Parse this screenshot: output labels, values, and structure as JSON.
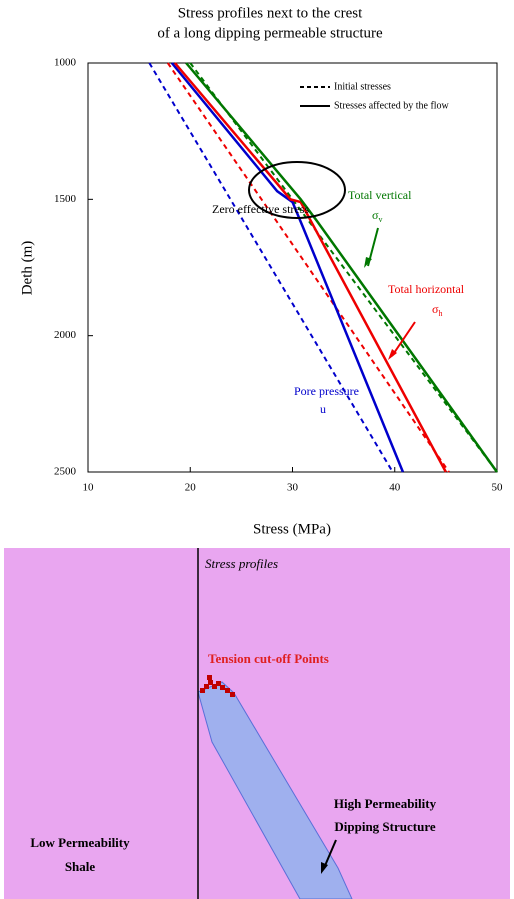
{
  "chart_data": {
    "type": "line",
    "title": [
      "Stress profiles next to the crest",
      "of a long dipping permeable structure"
    ],
    "x_label": "Stress (MPa)",
    "y_label": "Deth (m)",
    "xlim": [
      10,
      50
    ],
    "ylim": [
      1000,
      2500
    ],
    "y_inverted": true,
    "xticks": [
      10,
      20,
      30,
      40,
      50
    ],
    "yticks": [
      1000,
      1500,
      2000,
      2500
    ],
    "legend": [
      {
        "label": "Initial stresses",
        "style": "dashed"
      },
      {
        "label": "Stresses affected by the flow",
        "style": "solid"
      }
    ],
    "series": [
      {
        "color": "#0000cc",
        "style": "dashed",
        "x": [
          16,
          39.8
        ],
        "y": [
          1000,
          2500
        ]
      },
      {
        "color": "#ee0000",
        "style": "dashed",
        "x": [
          17.8,
          45.3
        ],
        "y": [
          1000,
          2500
        ]
      },
      {
        "color": "#007700",
        "style": "dashed",
        "x": [
          20,
          50
        ],
        "y": [
          1000,
          2500
        ]
      },
      {
        "color": "#0000cc",
        "style": "solid",
        "x": [
          18.2,
          28.5,
          30,
          31,
          40.8
        ],
        "y": [
          1000,
          1470,
          1510,
          1600,
          2500
        ]
      },
      {
        "color": "#ee0000",
        "style": "solid",
        "x": [
          18.5,
          29.8,
          30.8,
          45
        ],
        "y": [
          1000,
          1500,
          1510,
          2500
        ]
      },
      {
        "color": "#007700",
        "style": "solid",
        "x": [
          19.6,
          30.8,
          32.4,
          50
        ],
        "y": [
          1000,
          1500,
          1580,
          2500
        ]
      }
    ],
    "annotations": {
      "zero": "Zero effective stress",
      "vertical": "Total vertical",
      "sv": "σ",
      "sv_sub": "v",
      "horizontal": "Total horizontal",
      "sh": "σ",
      "sh_sub": "h",
      "pore": "Pore pressure",
      "u": "u"
    }
  },
  "diagram": {
    "title": "Stress profiles",
    "points_label": "Tension cut-off Points",
    "structure": [
      "High Permeability",
      "Dipping Structure"
    ],
    "shale": [
      "Low Permeability",
      "Shale"
    ]
  }
}
